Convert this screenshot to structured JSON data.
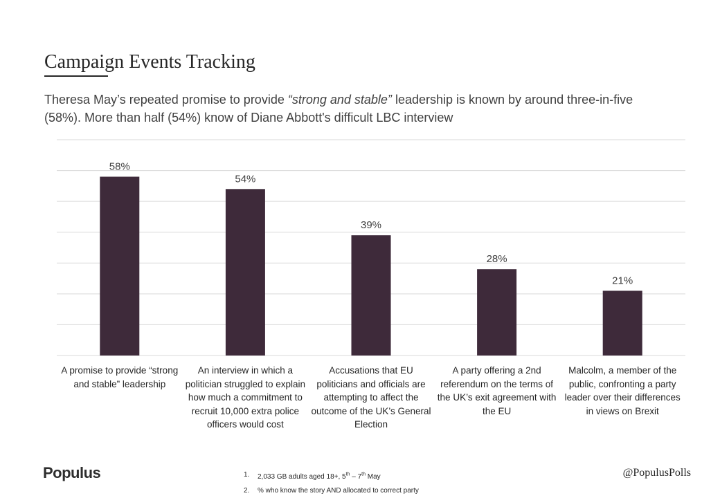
{
  "header": {
    "title": "Campaign Events Tracking",
    "subtitle_parts": {
      "before": "Theresa May’s repeated promise to provide ",
      "emphasis": "“strong and stable”",
      "after": " leadership is known by around three-in-five (58%). More than half (54%) know of Diane Abbott's difficult LBC interview"
    }
  },
  "chart_data": {
    "type": "bar",
    "categories": [
      "A promise to provide “strong and stable” leadership",
      "An interview in which a politician struggled to explain how much a commitment to recruit 10,000 extra police officers would cost",
      "Accusations that EU politicians and officials are attempting to affect the outcome of the UK’s General Election",
      "A party offering a 2nd referendum on the terms of the UK’s exit agreement with the EU",
      "Malcolm, a member of the public, confronting a party leader over their differences in views on Brexit"
    ],
    "values": [
      58,
      54,
      39,
      28,
      21
    ],
    "value_labels": [
      "58%",
      "54%",
      "39%",
      "28%",
      "21%"
    ],
    "ylim": [
      0,
      70
    ],
    "grid": true,
    "bar_color": "#3e2a3a",
    "grid_color": "#d9d9d9"
  },
  "footer": {
    "brand": "Populus",
    "handle": "@PopulusPolls",
    "notes": [
      {
        "num": "1.",
        "text": "2,033 GB adults aged 18+, 5th – 7th May"
      },
      {
        "num": "2.",
        "text": "% who know the story AND allocated to correct party"
      }
    ]
  }
}
